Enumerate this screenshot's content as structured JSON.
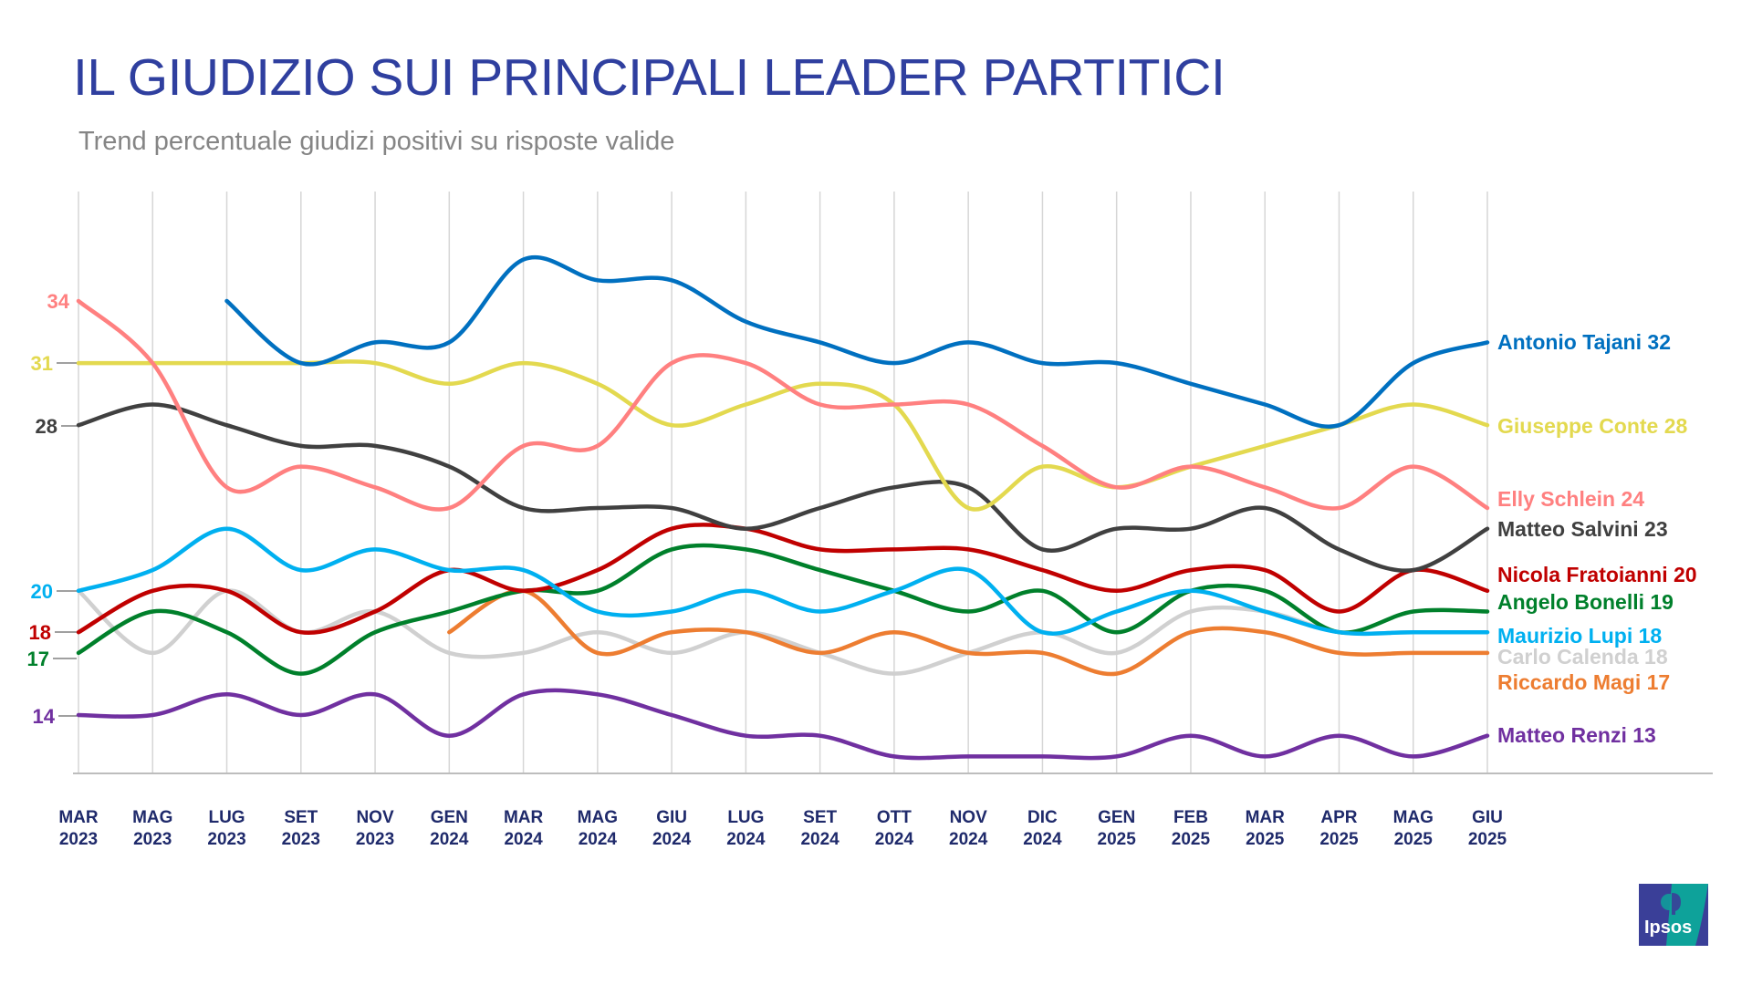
{
  "title": "IL GIUDIZIO SUI PRINCIPALI LEADER PARTITICI",
  "subtitle": "Trend percentuale giudizi positivi su risposte valide",
  "logo_text": "Ipsos",
  "chart_data": {
    "type": "line",
    "title": "IL GIUDIZIO SUI PRINCIPALI LEADER PARTITICI",
    "subtitle": "Trend percentuale giudizi positivi su risposte valide",
    "categories": [
      [
        "MAR",
        "2023"
      ],
      [
        "MAG",
        "2023"
      ],
      [
        "LUG",
        "2023"
      ],
      [
        "SET",
        "2023"
      ],
      [
        "NOV",
        "2023"
      ],
      [
        "GEN",
        "2024"
      ],
      [
        "MAR",
        "2024"
      ],
      [
        "MAG",
        "2024"
      ],
      [
        "GIU",
        "2024"
      ],
      [
        "LUG",
        "2024"
      ],
      [
        "SET",
        "2024"
      ],
      [
        "OTT",
        "2024"
      ],
      [
        "NOV",
        "2024"
      ],
      [
        "DIC",
        "2024"
      ],
      [
        "GEN",
        "2025"
      ],
      [
        "FEB",
        "2025"
      ],
      [
        "MAR",
        "2025"
      ],
      [
        "APR",
        "2025"
      ],
      [
        "MAG",
        "2025"
      ],
      [
        "GIU",
        "2025"
      ]
    ],
    "ylim": [
      11,
      37
    ],
    "grid": "vertical",
    "smooth": true,
    "start_labels": [
      {
        "series": "Elly Schlein",
        "text": "34"
      },
      {
        "series": "Giuseppe Conte",
        "text": "31"
      },
      {
        "series": "Matteo Salvini",
        "text": "28"
      },
      {
        "series": "Maurizio Lupi",
        "text": "20"
      },
      {
        "series": "Nicola Fratoianni",
        "text": "18"
      },
      {
        "series": "Angelo Bonelli",
        "text": "17"
      },
      {
        "series": "Matteo Renzi",
        "text": "14"
      }
    ],
    "series": [
      {
        "name": "Antonio Tajani",
        "end_label": "32",
        "color": "#0070C0",
        "values": [
          null,
          null,
          34,
          31,
          32,
          32,
          36,
          35,
          35,
          33,
          32,
          31,
          32,
          31,
          31,
          30,
          29,
          28,
          31,
          32
        ]
      },
      {
        "name": "Giuseppe Conte",
        "end_label": "28",
        "color": "#E3D94F",
        "values": [
          31,
          31,
          31,
          31,
          31,
          30,
          31,
          30,
          28,
          29,
          30,
          29,
          24,
          26,
          25,
          26,
          27,
          28,
          29,
          28
        ]
      },
      {
        "name": "Elly Schlein",
        "end_label": "24",
        "color": "#FF8080",
        "values": [
          34,
          31,
          25,
          26,
          25,
          24,
          27,
          27,
          31,
          31,
          29,
          29,
          29,
          27,
          25,
          26,
          25,
          24,
          26,
          24
        ]
      },
      {
        "name": "Matteo Salvini",
        "end_label": "23",
        "color": "#404040",
        "values": [
          28,
          29,
          28,
          27,
          27,
          26,
          24,
          24,
          24,
          23,
          24,
          25,
          25,
          22,
          23,
          23,
          24,
          22,
          21,
          23
        ]
      },
      {
        "name": "Nicola Fratoianni",
        "end_label": "20",
        "color": "#C00000",
        "values": [
          18,
          20,
          20,
          18,
          19,
          21,
          20,
          21,
          23,
          23,
          22,
          22,
          22,
          21,
          20,
          21,
          21,
          19,
          21,
          20
        ]
      },
      {
        "name": "Angelo Bonelli",
        "end_label": "19",
        "color": "#00802B",
        "values": [
          17,
          19,
          18,
          16,
          18,
          19,
          20,
          20,
          22,
          22,
          21,
          20,
          19,
          20,
          18,
          20,
          20,
          18,
          19,
          19
        ]
      },
      {
        "name": "Maurizio Lupi",
        "end_label": "18",
        "color": "#00B0F0",
        "values": [
          20,
          21,
          23,
          21,
          22,
          21,
          21,
          19,
          19,
          20,
          19,
          20,
          21,
          18,
          19,
          20,
          19,
          18,
          18,
          18
        ]
      },
      {
        "name": "Carlo Calenda",
        "end_label": "18",
        "color": "#D0D0D0",
        "values": [
          20,
          17,
          20,
          18,
          19,
          17,
          17,
          18,
          17,
          18,
          17,
          16,
          17,
          18,
          17,
          19,
          19,
          18,
          18,
          18
        ]
      },
      {
        "name": "Riccardo Magi",
        "end_label": "17",
        "color": "#ED7D31",
        "values": [
          null,
          null,
          null,
          null,
          null,
          18,
          20,
          17,
          18,
          18,
          17,
          18,
          17,
          17,
          16,
          18,
          18,
          17,
          17,
          17
        ]
      },
      {
        "name": "Matteo Renzi",
        "end_label": "13",
        "color": "#7030A0",
        "values": [
          14,
          14,
          15,
          14,
          15,
          13,
          15,
          15,
          14,
          13,
          13,
          12,
          12,
          12,
          12,
          13,
          12,
          13,
          12,
          13
        ]
      }
    ]
  }
}
